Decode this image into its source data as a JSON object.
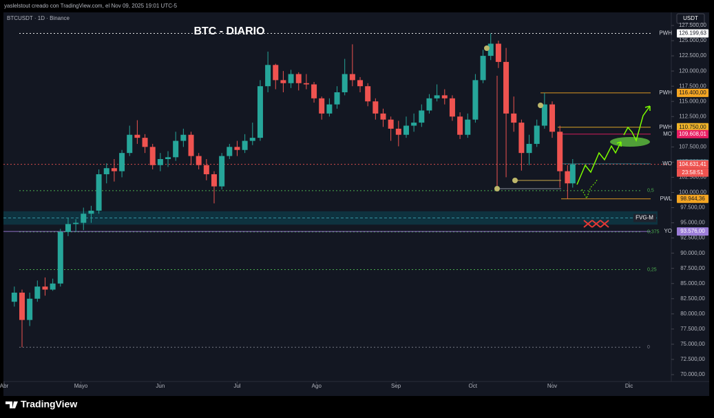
{
  "chart_data": {
    "type": "candlestick",
    "title": "BTC - DIARIO",
    "creator_note": "yaslelstout creado con TradingView.com, el Nov 09, 2025 19:01 UTC-5",
    "symbol": "BTCUSDT · 1D · Binance",
    "currency": "USDT",
    "brand": "TradingView",
    "countdown": "23:58:51",
    "up_color": "#26a69a",
    "down_color": "#ef5350",
    "x": [
      4,
      7,
      10,
      13,
      16,
      19,
      22,
      25,
      28,
      31,
      34,
      37,
      40,
      43,
      46,
      49,
      52,
      55,
      58,
      61,
      64,
      67,
      70,
      73,
      76,
      79,
      82,
      85,
      88,
      91,
      94,
      97,
      100,
      103,
      106,
      109,
      112,
      115,
      118,
      121,
      124,
      127,
      130,
      133,
      136,
      139,
      142,
      145,
      148,
      151,
      154,
      157,
      160,
      163,
      166,
      169,
      172,
      175,
      178,
      181,
      184,
      187,
      190,
      193,
      196,
      199,
      202,
      205,
      208,
      211,
      214,
      217,
      220,
      222
    ],
    "ohlc": [
      [
        82000,
        84500,
        81200,
        83500
      ],
      [
        83500,
        84000,
        74500,
        79000
      ],
      [
        79000,
        83500,
        78000,
        82500
      ],
      [
        82500,
        85500,
        82000,
        84500
      ],
      [
        84500,
        86000,
        83000,
        84000
      ],
      [
        84000,
        85800,
        83800,
        85000
      ],
      [
        85000,
        94000,
        84500,
        93500
      ],
      [
        93500,
        95800,
        92800,
        94800
      ],
      [
        94800,
        95600,
        93500,
        95000
      ],
      [
        95000,
        97500,
        93800,
        96500
      ],
      [
        96500,
        97800,
        95000,
        97000
      ],
      [
        97000,
        103800,
        96500,
        103000
      ],
      [
        103000,
        104800,
        101500,
        104000
      ],
      [
        104000,
        105500,
        101800,
        103500
      ],
      [
        103500,
        107000,
        102500,
        106500
      ],
      [
        106500,
        111000,
        106000,
        109500
      ],
      [
        109500,
        111900,
        108000,
        109000
      ],
      [
        109000,
        109600,
        106500,
        107500
      ],
      [
        107500,
        108000,
        103800,
        104500
      ],
      [
        104500,
        106500,
        103500,
        105500
      ],
      [
        105500,
        106800,
        104200,
        105800
      ],
      [
        105800,
        110000,
        105200,
        108500
      ],
      [
        108500,
        110500,
        107500,
        109500
      ],
      [
        109500,
        110000,
        104500,
        106000
      ],
      [
        106000,
        106500,
        103800,
        104500
      ],
      [
        104500,
        105500,
        102000,
        103000
      ],
      [
        103000,
        103500,
        98200,
        101000
      ],
      [
        101000,
        106500,
        100500,
        106000
      ],
      [
        106000,
        108000,
        105500,
        107500
      ],
      [
        107500,
        108500,
        106000,
        107000
      ],
      [
        107000,
        109600,
        106500,
        108500
      ],
      [
        108500,
        111500,
        107800,
        109000
      ],
      [
        109000,
        118500,
        108500,
        117500
      ],
      [
        117500,
        123200,
        116500,
        121000
      ],
      [
        121000,
        121200,
        117000,
        118500
      ],
      [
        118500,
        120000,
        116500,
        118000
      ],
      [
        118000,
        120200,
        117200,
        119500
      ],
      [
        119500,
        119800,
        116800,
        118000
      ],
      [
        118000,
        119500,
        117000,
        117800
      ],
      [
        117800,
        118200,
        114800,
        115500
      ],
      [
        115500,
        115800,
        112000,
        113000
      ],
      [
        113000,
        115500,
        112500,
        114500
      ],
      [
        114500,
        117500,
        113800,
        116500
      ],
      [
        116500,
        122000,
        116000,
        119500
      ],
      [
        119500,
        124400,
        117500,
        118500
      ],
      [
        118500,
        119000,
        116500,
        117500
      ],
      [
        117500,
        118000,
        114200,
        115000
      ],
      [
        115000,
        115500,
        112000,
        113000
      ],
      [
        113000,
        113800,
        110800,
        112000
      ],
      [
        112000,
        112500,
        108500,
        110500
      ],
      [
        110500,
        111800,
        107600,
        109500
      ],
      [
        109500,
        112500,
        109000,
        111000
      ],
      [
        111000,
        113000,
        110000,
        111500
      ],
      [
        111500,
        114500,
        110800,
        113500
      ],
      [
        113500,
        116200,
        113000,
        115500
      ],
      [
        115500,
        117800,
        115000,
        116000
      ],
      [
        116000,
        117000,
        114500,
        115500
      ],
      [
        115500,
        116000,
        111800,
        112500
      ],
      [
        112500,
        113200,
        108800,
        109500
      ],
      [
        109500,
        113000,
        109000,
        112000
      ],
      [
        112000,
        119500,
        111500,
        118500
      ],
      [
        118500,
        123500,
        118000,
        122500
      ],
      [
        122500,
        126200,
        121800,
        124500
      ],
      [
        124500,
        125000,
        120500,
        121500
      ],
      [
        121500,
        123800,
        102500,
        113000
      ],
      [
        113000,
        115800,
        110000,
        111500
      ],
      [
        111500,
        112000,
        103600,
        106500
      ],
      [
        106500,
        109500,
        104500,
        108000
      ],
      [
        108000,
        112000,
        107500,
        111000
      ],
      [
        111000,
        116400,
        110500,
        114500
      ],
      [
        114500,
        115000,
        109000,
        110000
      ],
      [
        110000,
        111000,
        100800,
        103500
      ],
      [
        103500,
        104500,
        98950,
        101500
      ],
      [
        101500,
        105500,
        100800,
        104631.41
      ]
    ],
    "xlim": [
      -1.6,
      260.5
    ],
    "xticks": [
      {
        "value": 0,
        "label": "Abr"
      },
      {
        "value": 30,
        "label": "Mayo"
      },
      {
        "value": 61,
        "label": "Jun"
      },
      {
        "value": 91,
        "label": "Jul"
      },
      {
        "value": 122,
        "label": "Ago"
      },
      {
        "value": 153,
        "label": "Sep"
      },
      {
        "value": 183,
        "label": "Oct"
      },
      {
        "value": 214,
        "label": "Nov"
      },
      {
        "value": 244,
        "label": "Dic"
      }
    ],
    "ylim": [
      68750,
      129430
    ],
    "yticks": [
      {
        "value": 70000,
        "label": "70.000,00"
      },
      {
        "value": 72500,
        "label": "72.500,00"
      },
      {
        "value": 75000,
        "label": "75.000,00"
      },
      {
        "value": 77500,
        "label": "77.500,00"
      },
      {
        "value": 80000,
        "label": "80.000,00"
      },
      {
        "value": 82500,
        "label": "82.500,00"
      },
      {
        "value": 85000,
        "label": "85.000,00"
      },
      {
        "value": 87500,
        "label": "87.500,00"
      },
      {
        "value": 90000,
        "label": "90.000,00"
      },
      {
        "value": 92500,
        "label": "92.500,00"
      },
      {
        "value": 95000,
        "label": "95.000,00"
      },
      {
        "value": 97500,
        "label": "97.500,00"
      },
      {
        "value": 100000,
        "label": "100.000,00"
      },
      {
        "value": 102500,
        "label": "102.500,00"
      },
      {
        "value": 105000,
        "label": "105.000,00"
      },
      {
        "value": 107500,
        "label": "107.500,00"
      },
      {
        "value": 110000,
        "label": "110.000,00"
      },
      {
        "value": 112500,
        "label": "112.500,00"
      },
      {
        "value": 115000,
        "label": "115.000,00"
      },
      {
        "value": 117500,
        "label": "117.500,00"
      },
      {
        "value": 120000,
        "label": "120.000,00"
      },
      {
        "value": 122500,
        "label": "122.500,00"
      },
      {
        "value": 125000,
        "label": "125.000,00"
      },
      {
        "value": 127500,
        "label": "127.500,00"
      }
    ],
    "levels": [
      {
        "name": "PWH",
        "value": 126199.63,
        "label": "126.199,63",
        "color": "#ffffff"
      },
      {
        "name": "PWH",
        "value": 116400,
        "label": "116.400,00",
        "color": "#f5a623"
      },
      {
        "name": "PWH",
        "value": 110750,
        "label": "110.750,00",
        "color": "#f0b429"
      },
      {
        "name": "MO",
        "value": 109608.01,
        "label": "109.608,01",
        "color": "#e91e63"
      },
      {
        "name": "WO",
        "value": 104722.95,
        "label": "104.722,95",
        "color": "#4dd0e1"
      },
      {
        "value": 104631.41,
        "label": "104.631,41",
        "color": "#ef5350"
      },
      {
        "name": "PWL",
        "value": 98944.36,
        "label": "98.944,36",
        "color": "#f5a623"
      },
      {
        "name": "YO",
        "value": 93576,
        "label": "93.576,00",
        "color": "#9c7dd8"
      }
    ],
    "fib": [
      {
        "ratio": "0,5",
        "price": 100300
      },
      {
        "ratio": "0,375",
        "price": 93500
      },
      {
        "ratio": "0,25",
        "price": 87300
      },
      {
        "ratio": "0",
        "price": 74500
      }
    ],
    "zone": {
      "label": "FVG-M",
      "low": 94700,
      "high": 96900
    }
  }
}
